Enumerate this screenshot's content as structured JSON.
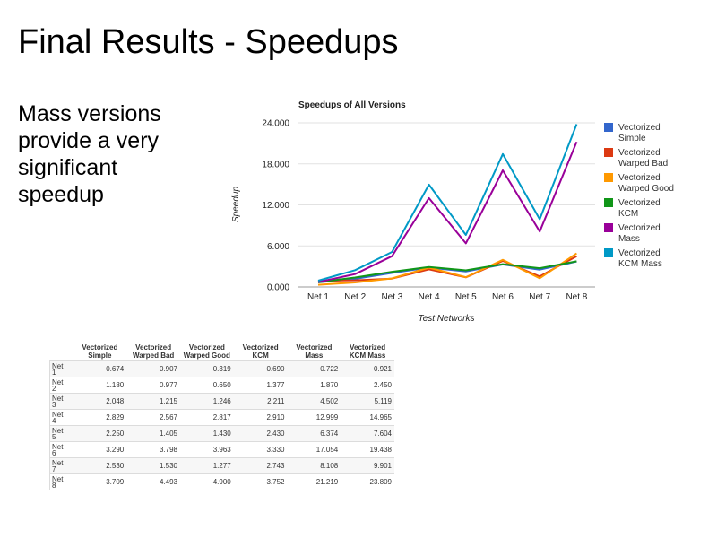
{
  "slide": {
    "title": "Final Results - Speedups",
    "body": "Mass versions provide a very significant speedup"
  },
  "chart_data": {
    "type": "line",
    "title": "Speedups of All Versions",
    "xlabel": "Test Networks",
    "ylabel": "Speedup",
    "categories": [
      "Net 1",
      "Net 2",
      "Net 3",
      "Net 4",
      "Net 5",
      "Net 6",
      "Net 7",
      "Net 8"
    ],
    "yticks": [
      "0.000",
      "6.000",
      "12.000",
      "18.000",
      "24.000"
    ],
    "ylim": [
      0,
      24
    ],
    "legend_position": "right",
    "series": [
      {
        "name": "Vectorized Simple",
        "color": "#3366cc",
        "values": [
          0.674,
          1.18,
          2.048,
          2.829,
          2.25,
          3.29,
          2.53,
          3.709
        ]
      },
      {
        "name": "Vectorized Warped Bad",
        "color": "#dc3912",
        "values": [
          0.907,
          0.977,
          1.215,
          2.567,
          1.405,
          3.798,
          1.53,
          4.493
        ]
      },
      {
        "name": "Vectorized Warped Good",
        "color": "#ff9900",
        "values": [
          0.319,
          0.65,
          1.246,
          2.817,
          1.43,
          3.963,
          1.277,
          4.9
        ]
      },
      {
        "name": "Vectorized KCM",
        "color": "#109618",
        "values": [
          0.69,
          1.377,
          2.211,
          2.91,
          2.43,
          3.33,
          2.743,
          3.752
        ]
      },
      {
        "name": "Vectorized Mass",
        "color": "#990099",
        "values": [
          0.722,
          1.87,
          4.502,
          12.999,
          6.374,
          17.054,
          8.108,
          21.219
        ]
      },
      {
        "name": "Vectorized KCM Mass",
        "color": "#0099c6",
        "values": [
          0.921,
          2.45,
          5.119,
          14.965,
          7.604,
          19.438,
          9.901,
          23.809
        ]
      }
    ]
  },
  "table": {
    "headers": [
      "Vectorized\nSimple",
      "Vectorized\nWarped Bad",
      "Vectorized\nWarped Good",
      "Vectorized\nKCM",
      "Vectorized\nMass",
      "Vectorized\nKCM Mass"
    ],
    "rows": [
      {
        "label": "Net\n1",
        "cells": [
          "0.674",
          "0.907",
          "0.319",
          "0.690",
          "0.722",
          "0.921"
        ]
      },
      {
        "label": "Net\n2",
        "cells": [
          "1.180",
          "0.977",
          "0.650",
          "1.377",
          "1.870",
          "2.450"
        ]
      },
      {
        "label": "Net\n3",
        "cells": [
          "2.048",
          "1.215",
          "1.246",
          "2.211",
          "4.502",
          "5.119"
        ]
      },
      {
        "label": "Net\n4",
        "cells": [
          "2.829",
          "2.567",
          "2.817",
          "2.910",
          "12.999",
          "14.965"
        ]
      },
      {
        "label": "Net\n5",
        "cells": [
          "2.250",
          "1.405",
          "1.430",
          "2.430",
          "6.374",
          "7.604"
        ]
      },
      {
        "label": "Net\n6",
        "cells": [
          "3.290",
          "3.798",
          "3.963",
          "3.330",
          "17.054",
          "19.438"
        ]
      },
      {
        "label": "Net\n7",
        "cells": [
          "2.530",
          "1.530",
          "1.277",
          "2.743",
          "8.108",
          "9.901"
        ]
      },
      {
        "label": "Net\n8",
        "cells": [
          "3.709",
          "4.493",
          "4.900",
          "3.752",
          "21.219",
          "23.809"
        ]
      }
    ]
  }
}
